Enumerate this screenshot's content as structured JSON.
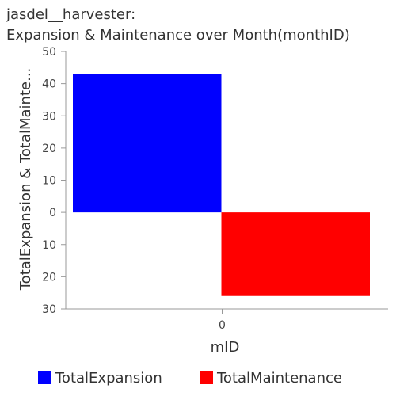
{
  "chart_data": {
    "type": "bar",
    "title_line1": "jasdel__harvester:",
    "title_line2": "Expansion & Maintenance over Month(monthID)",
    "xlabel": "mID",
    "ylabel": "TotalExpansion & TotalMainte...",
    "categories": [
      "0"
    ],
    "series": [
      {
        "name": "TotalExpansion",
        "values": [
          43
        ],
        "color": "#0000ff"
      },
      {
        "name": "TotalMaintenance",
        "values": [
          -26
        ],
        "color": "#ff0000"
      }
    ],
    "ylim": [
      -30,
      50
    ],
    "y_ticks": [
      50,
      40,
      30,
      20,
      10,
      0,
      -10,
      -20,
      -30
    ],
    "y_tick_labels": [
      "50",
      "40",
      "30",
      "20",
      "10",
      "0",
      "10",
      "20",
      "30"
    ],
    "grid": false,
    "legend_position": "bottom"
  }
}
